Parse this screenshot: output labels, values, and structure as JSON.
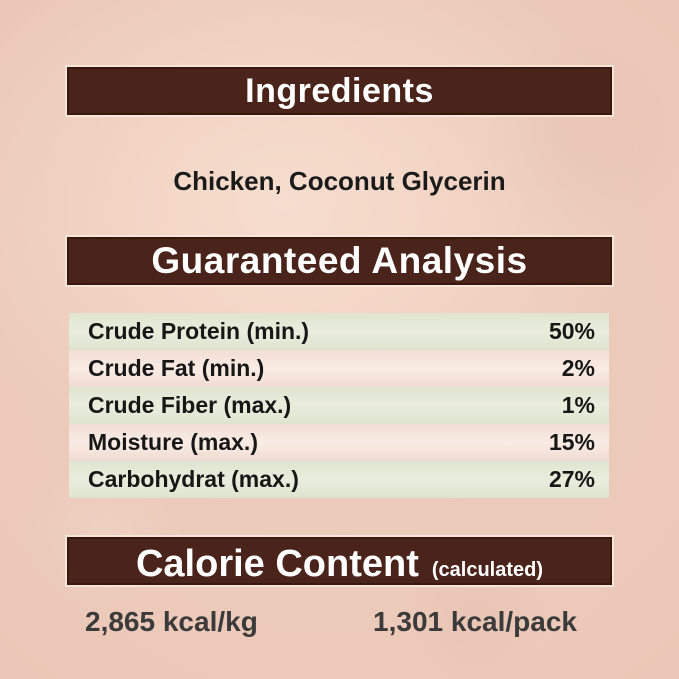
{
  "page": {
    "background_color": "#ebc8b7",
    "banner_color": "#4a231b",
    "banner_text_color": "#ffffff",
    "row_green_color": "#e4e8d6",
    "row_pink_color": "#f5e3da",
    "body_text_color": "#1b1b1b"
  },
  "ingredients": {
    "title": "Ingredients",
    "content": "Chicken, Coconut Glycerin"
  },
  "guaranteed_analysis": {
    "title": "Guaranteed Analysis",
    "rows": [
      {
        "label": "Crude Protein (min.)",
        "value": "50%"
      },
      {
        "label": "Crude Fat (min.)",
        "value": "2%"
      },
      {
        "label": "Crude Fiber (max.)",
        "value": "1%"
      },
      {
        "label": "Moisture (max.)",
        "value": "15%"
      },
      {
        "label": "Carbohydrat (max.)",
        "value": "27%"
      }
    ]
  },
  "calorie_content": {
    "title": "Calorie Content",
    "subtitle": "(calculated)",
    "per_kg": "2,865 kcal/kg",
    "per_pack": "1,301 kcal/pack"
  }
}
